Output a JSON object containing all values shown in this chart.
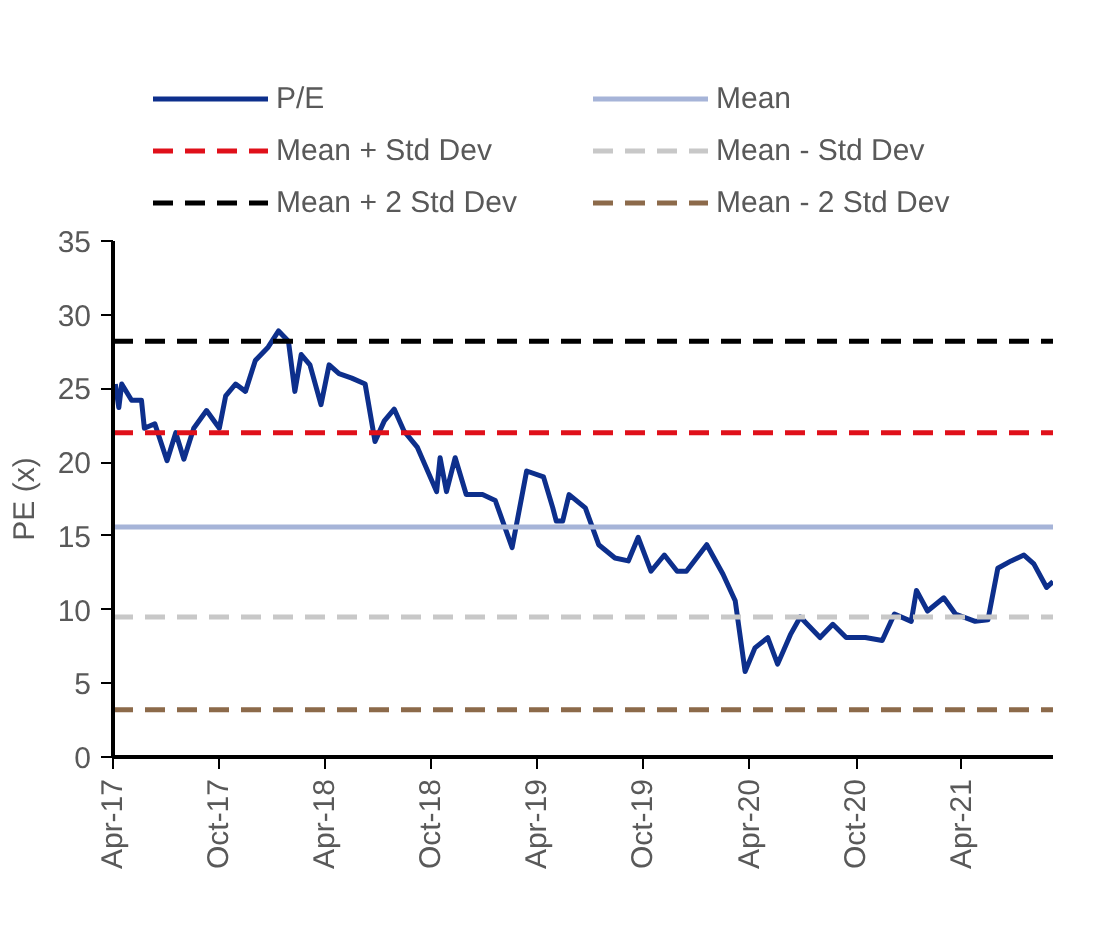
{
  "chart_data": {
    "type": "line",
    "ylabel": "PE (x)",
    "x": [
      "2017-04-05",
      "2017-04-11",
      "2017-04-16",
      "2017-05-03",
      "2017-05-20",
      "2017-05-25",
      "2017-06-12",
      "2017-07-03",
      "2017-07-18",
      "2017-08-01",
      "2017-08-18",
      "2017-09-09",
      "2017-10-01",
      "2017-10-12",
      "2017-10-29",
      "2017-11-15",
      "2017-12-02",
      "2017-12-24",
      "2018-01-11",
      "2018-01-28",
      "2018-02-08",
      "2018-02-19",
      "2018-03-06",
      "2018-03-25",
      "2018-04-08",
      "2018-04-25",
      "2018-05-17",
      "2018-06-09",
      "2018-06-26",
      "2018-07-12",
      "2018-07-29",
      "2018-08-15",
      "2018-09-07",
      "2018-10-10",
      "2018-10-16",
      "2018-10-27",
      "2018-11-11",
      "2018-11-30",
      "2018-12-28",
      "2019-01-19",
      "2019-02-17",
      "2019-03-14",
      "2019-04-12",
      "2019-04-28",
      "2019-05-04",
      "2019-05-15",
      "2019-05-26",
      "2019-06-23",
      "2019-07-16",
      "2019-08-13",
      "2019-09-05",
      "2019-09-22",
      "2019-10-14",
      "2019-11-06",
      "2019-11-28",
      "2019-12-14",
      "2020-01-18",
      "2020-02-15",
      "2020-03-07",
      "2020-03-24",
      "2020-04-10",
      "2020-05-02",
      "2020-05-19",
      "2020-06-10",
      "2020-06-27",
      "2020-07-31",
      "2020-08-22",
      "2020-09-14",
      "2020-10-17",
      "2020-11-15",
      "2020-12-06",
      "2021-01-04",
      "2021-01-13",
      "2021-02-01",
      "2021-03-01",
      "2021-03-21",
      "2021-04-24",
      "2021-05-16",
      "2021-06-02",
      "2021-06-25",
      "2021-07-17",
      "2021-08-03",
      "2021-08-25",
      "2021-09-05"
    ],
    "series": [
      {
        "name": "P/E",
        "color": "#0d2f8c",
        "values": [
          25.3,
          23.7,
          25.3,
          24.2,
          24.2,
          22.3,
          22.6,
          20.1,
          22.0,
          20.2,
          22.3,
          23.5,
          22.3,
          24.5,
          25.3,
          24.8,
          26.9,
          27.8,
          28.9,
          28.2,
          24.8,
          27.3,
          26.6,
          23.9,
          26.6,
          26.0,
          25.7,
          25.3,
          21.4,
          22.8,
          23.6,
          22.1,
          21.0,
          18.0,
          20.3,
          18.0,
          20.3,
          17.8,
          17.8,
          17.4,
          14.2,
          19.4,
          19.0,
          16.9,
          16.0,
          16.0,
          17.8,
          16.9,
          14.4,
          13.5,
          13.3,
          14.9,
          12.6,
          13.7,
          12.6,
          12.6,
          14.4,
          12.4,
          10.6,
          5.8,
          7.4,
          8.1,
          6.3,
          8.3,
          9.5,
          8.1,
          9.0,
          8.1,
          8.1,
          7.9,
          9.7,
          9.2,
          11.3,
          9.9,
          10.8,
          9.7,
          9.2,
          9.3,
          12.8,
          13.3,
          13.7,
          13.1,
          11.5,
          11.9
        ]
      }
    ],
    "ref_lines": [
      {
        "axis": "y",
        "value": 15.6,
        "label": "Mean",
        "color": "#a6b4d8",
        "line_style": "solid"
      },
      {
        "axis": "y",
        "value": 22.0,
        "label": "Mean + Std Dev",
        "color": "#e0101a",
        "line_style": "dashed"
      },
      {
        "axis": "y",
        "value": 9.5,
        "label": "Mean - Std Dev",
        "color": "#c8c8c8",
        "line_style": "dashed"
      },
      {
        "axis": "y",
        "value": 28.2,
        "label": "Mean + 2 Std Dev",
        "color": "#000000",
        "line_style": "dashed"
      },
      {
        "axis": "y",
        "value": 3.2,
        "label": "Mean - 2 Std Dev",
        "color": "#8c6a4a",
        "line_style": "dashed"
      }
    ],
    "xlim": [
      "2017-04-01",
      "2021-09-05"
    ],
    "xticks": [
      {
        "value": "2017-04-01",
        "label": "Apr-17"
      },
      {
        "value": "2017-10-01",
        "label": "Oct-17"
      },
      {
        "value": "2018-04-01",
        "label": "Apr-18"
      },
      {
        "value": "2018-10-01",
        "label": "Oct-18"
      },
      {
        "value": "2019-04-01",
        "label": "Apr-19"
      },
      {
        "value": "2019-10-01",
        "label": "Oct-19"
      },
      {
        "value": "2020-04-01",
        "label": "Apr-20"
      },
      {
        "value": "2020-10-01",
        "label": "Oct-20"
      },
      {
        "value": "2021-04-01",
        "label": "Apr-21"
      }
    ],
    "ylim": [
      0,
      35
    ],
    "yticks": [
      0,
      5,
      10,
      15,
      20,
      25,
      30,
      35
    ],
    "grid": false,
    "legend": "top",
    "line_style": "solid",
    "marker": "none"
  }
}
